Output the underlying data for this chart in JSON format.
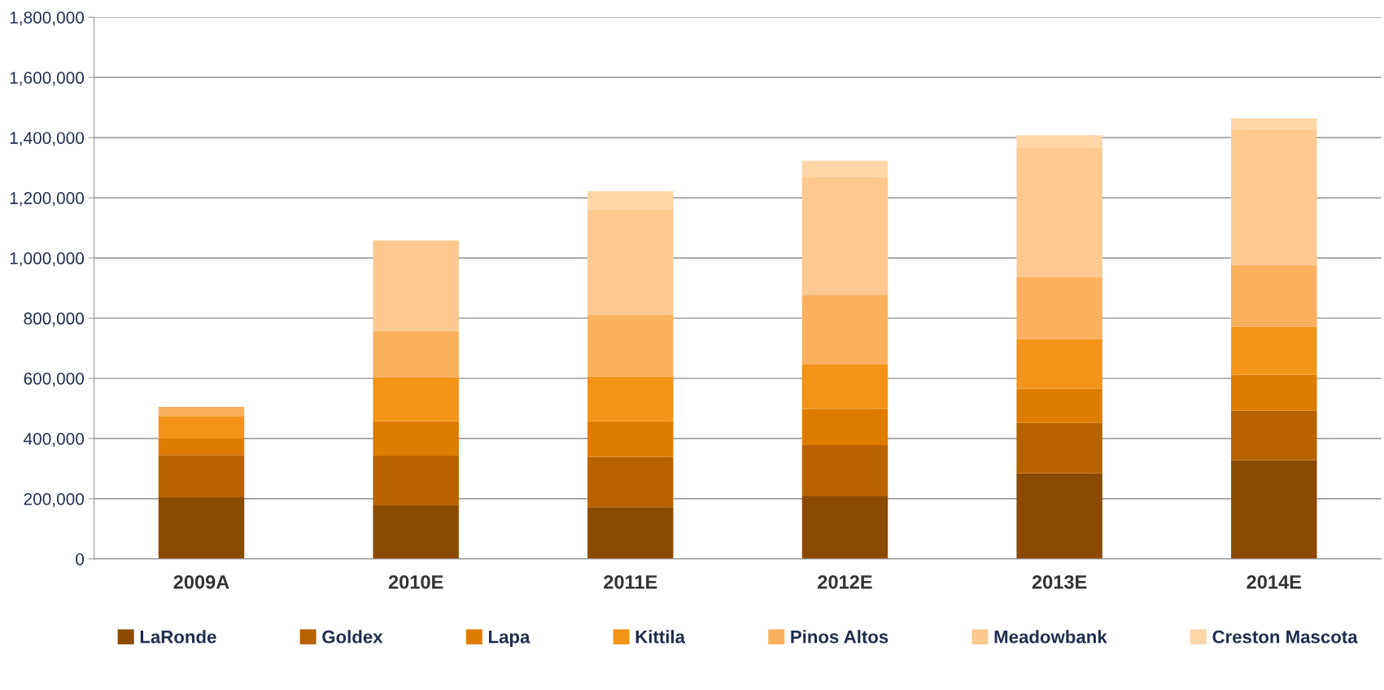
{
  "chart_data": {
    "type": "bar",
    "stacked": true,
    "categories": [
      "2009A",
      "2010E",
      "2011E",
      "2012E",
      "2013E",
      "2014E"
    ],
    "series": [
      {
        "name": "LaRonde",
        "color": "#8b4a00",
        "values": [
          205000,
          178000,
          172000,
          208000,
          284000,
          328000
        ]
      },
      {
        "name": "Goldex",
        "color": "#b86200",
        "values": [
          140000,
          165000,
          167000,
          170000,
          168000,
          165000
        ]
      },
      {
        "name": "Lapa",
        "color": "#de7c00",
        "values": [
          55000,
          115000,
          118000,
          120000,
          114000,
          119000
        ]
      },
      {
        "name": "Kittila",
        "color": "#f29418",
        "values": [
          75000,
          145000,
          150000,
          150000,
          165000,
          160000
        ]
      },
      {
        "name": "Pinos Altos",
        "color": "#fbb05e",
        "values": [
          30000,
          155000,
          205000,
          230000,
          206000,
          205000
        ]
      },
      {
        "name": "Meadowbank",
        "color": "#fdc990",
        "values": [
          0,
          300000,
          350000,
          390000,
          430000,
          452000
        ]
      },
      {
        "name": "Creston Mascota",
        "color": "#fed6a8",
        "values": [
          0,
          0,
          60000,
          55000,
          41000,
          35000
        ]
      }
    ],
    "ylim": [
      0,
      1800000
    ],
    "yticks": [
      {
        "value": 0,
        "label": "0"
      },
      {
        "value": 200000,
        "label": "200,000"
      },
      {
        "value": 400000,
        "label": "400,000"
      },
      {
        "value": 600000,
        "label": "600,000"
      },
      {
        "value": 800000,
        "label": "800,000"
      },
      {
        "value": 1000000,
        "label": "1,000,000"
      },
      {
        "value": 1200000,
        "label": "1,200,000"
      },
      {
        "value": 1400000,
        "label": "1,400,000"
      },
      {
        "value": 1600000,
        "label": "1,600,000"
      },
      {
        "value": 1800000,
        "label": "1,800,000"
      }
    ],
    "grid": "y",
    "legend": "bottom"
  }
}
